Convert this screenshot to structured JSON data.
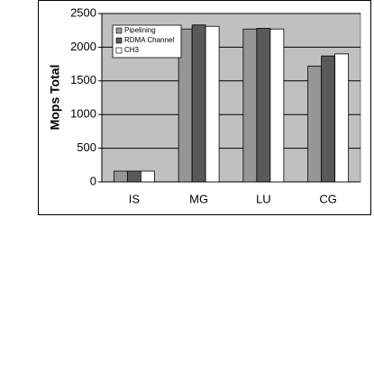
{
  "chart_data": {
    "type": "bar",
    "ylabel": "Mops Total",
    "categories": [
      "IS",
      "MG",
      "LU",
      "CG"
    ],
    "series": [
      {
        "name": "Pipelining",
        "color": "#969696",
        "values": [
          160,
          2270,
          2270,
          1720
        ]
      },
      {
        "name": "RDMA Channel",
        "color": "#595959",
        "values": [
          160,
          2330,
          2280,
          1870
        ]
      },
      {
        "name": "CH3",
        "color": "#ffffff",
        "values": [
          160,
          2310,
          2270,
          1900
        ]
      }
    ],
    "ylim": [
      0,
      2500
    ],
    "yticks": [
      0,
      500,
      1000,
      1500,
      2000,
      2500
    ],
    "grid": true,
    "legend": "upper-left"
  }
}
